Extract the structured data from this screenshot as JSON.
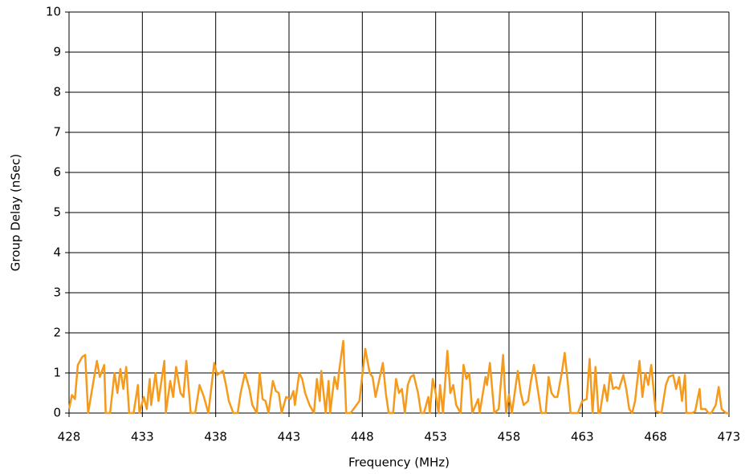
{
  "chart_data": {
    "type": "line",
    "x_label": "Frequency (MHz)",
    "y_label": "Group Delay (nSec)",
    "xlim": [
      428,
      473
    ],
    "xticks": [
      428,
      433,
      438,
      443,
      448,
      453,
      458,
      463,
      468,
      473
    ],
    "ylim": [
      0,
      10
    ],
    "yticks": [
      0,
      1,
      2,
      3,
      4,
      5,
      6,
      7,
      8,
      9,
      10
    ],
    "grid": true,
    "x": [
      428.0,
      428.2,
      428.4,
      428.6,
      428.9,
      429.1,
      429.3,
      429.9,
      430.1,
      430.4,
      430.5,
      430.8,
      431.1,
      431.3,
      431.5,
      431.7,
      431.9,
      432.1,
      432.4,
      432.7,
      432.8,
      433.1,
      433.3,
      433.5,
      433.6,
      433.9,
      434.1,
      434.5,
      434.6,
      434.9,
      435.1,
      435.3,
      435.6,
      435.8,
      436.0,
      436.3,
      436.6,
      436.9,
      437.2,
      437.5,
      437.9,
      438.1,
      438.5,
      438.7,
      438.9,
      439.2,
      439.5,
      439.7,
      440.0,
      440.3,
      440.5,
      440.8,
      441.0,
      441.2,
      441.4,
      441.6,
      441.9,
      442.1,
      442.3,
      442.5,
      442.8,
      443.1,
      443.3,
      443.4,
      443.7,
      443.9,
      444.1,
      444.4,
      444.7,
      444.9,
      445.1,
      445.2,
      445.5,
      445.7,
      445.8,
      446.1,
      446.3,
      446.4,
      446.7,
      446.9,
      447.2,
      447.8,
      448.2,
      448.5,
      448.7,
      448.9,
      449.4,
      449.6,
      449.8,
      450.1,
      450.3,
      450.5,
      450.7,
      450.9,
      451.1,
      451.3,
      451.5,
      451.8,
      452.0,
      452.2,
      452.5,
      452.6,
      452.8,
      453.0,
      453.2,
      453.3,
      453.5,
      453.8,
      454.0,
      454.2,
      454.4,
      454.7,
      454.9,
      455.1,
      455.3,
      455.5,
      455.9,
      456.0,
      456.4,
      456.5,
      456.7,
      457.0,
      457.3,
      457.6,
      457.8,
      458.0,
      458.2,
      458.6,
      458.8,
      459.0,
      459.3,
      459.5,
      459.7,
      460.0,
      460.2,
      460.5,
      460.7,
      460.9,
      461.1,
      461.3,
      461.6,
      461.8,
      462.0,
      462.2,
      462.7,
      463.0,
      463.3,
      463.5,
      463.7,
      463.9,
      464.1,
      464.2,
      464.5,
      464.7,
      464.9,
      465.1,
      465.3,
      465.5,
      465.8,
      466.0,
      466.2,
      466.4,
      466.6,
      466.9,
      467.1,
      467.3,
      467.5,
      467.7,
      468.0,
      468.4,
      468.7,
      468.9,
      469.2,
      469.4,
      469.6,
      469.8,
      470.0,
      470.1,
      470.5,
      470.7,
      471.0,
      471.1,
      471.4,
      471.6,
      471.8,
      472.1,
      472.3,
      472.5,
      472.8,
      473.0
    ],
    "series": [
      {
        "name": "Group Delay",
        "color": "#f59a1b",
        "values": [
          0.1,
          0.45,
          0.35,
          1.2,
          1.4,
          1.45,
          0,
          1.3,
          0.9,
          1.2,
          0,
          0,
          1.0,
          0.5,
          1.1,
          0.6,
          1.15,
          0,
          0,
          0.7,
          0,
          0.4,
          0.1,
          0.85,
          0.2,
          1.0,
          0.3,
          1.3,
          0,
          0.8,
          0.4,
          1.15,
          0.5,
          0.4,
          1.3,
          0,
          0,
          0.7,
          0.4,
          0,
          1.25,
          0.95,
          1.05,
          0.7,
          0.3,
          0,
          0,
          0.5,
          1.0,
          0.6,
          0.2,
          0,
          1.0,
          0.35,
          0.3,
          0,
          0.8,
          0.55,
          0.5,
          0,
          0.4,
          0.35,
          0.55,
          0.2,
          1.0,
          0.85,
          0.5,
          0.2,
          0,
          0.85,
          0.3,
          1.05,
          0,
          0.8,
          0,
          0.9,
          0.6,
          1.0,
          1.8,
          0,
          0,
          0.3,
          1.6,
          1.0,
          0.9,
          0.4,
          1.25,
          0.5,
          0,
          0,
          0.85,
          0.5,
          0.6,
          0,
          0.7,
          0.9,
          0.95,
          0.5,
          0,
          0,
          0.4,
          0,
          0.85,
          0.5,
          0,
          0.7,
          0,
          1.55,
          0.5,
          0.7,
          0.2,
          0,
          1.2,
          0.85,
          1.0,
          0,
          0.35,
          0,
          0.9,
          0.7,
          1.25,
          0,
          0.1,
          1.45,
          0,
          0.45,
          0,
          1.05,
          0.5,
          0.2,
          0.3,
          0.8,
          1.2,
          0.5,
          0,
          0,
          0.9,
          0.5,
          0.4,
          0.4,
          1.0,
          1.5,
          0.8,
          0,
          0,
          0.3,
          0.35,
          1.35,
          0,
          1.15,
          0,
          0,
          0.7,
          0.3,
          1.0,
          0.6,
          0.65,
          0.6,
          0.95,
          0.6,
          0.1,
          0,
          0.3,
          1.3,
          0.4,
          1.0,
          0.7,
          1.2,
          0.05,
          0,
          0.7,
          0.9,
          0.95,
          0.6,
          0.9,
          0.3,
          0.95,
          0,
          0,
          0.05,
          0.6,
          0.1,
          0.1,
          0,
          0,
          0.2,
          0.65,
          0.1,
          0,
          0
        ]
      }
    ]
  }
}
